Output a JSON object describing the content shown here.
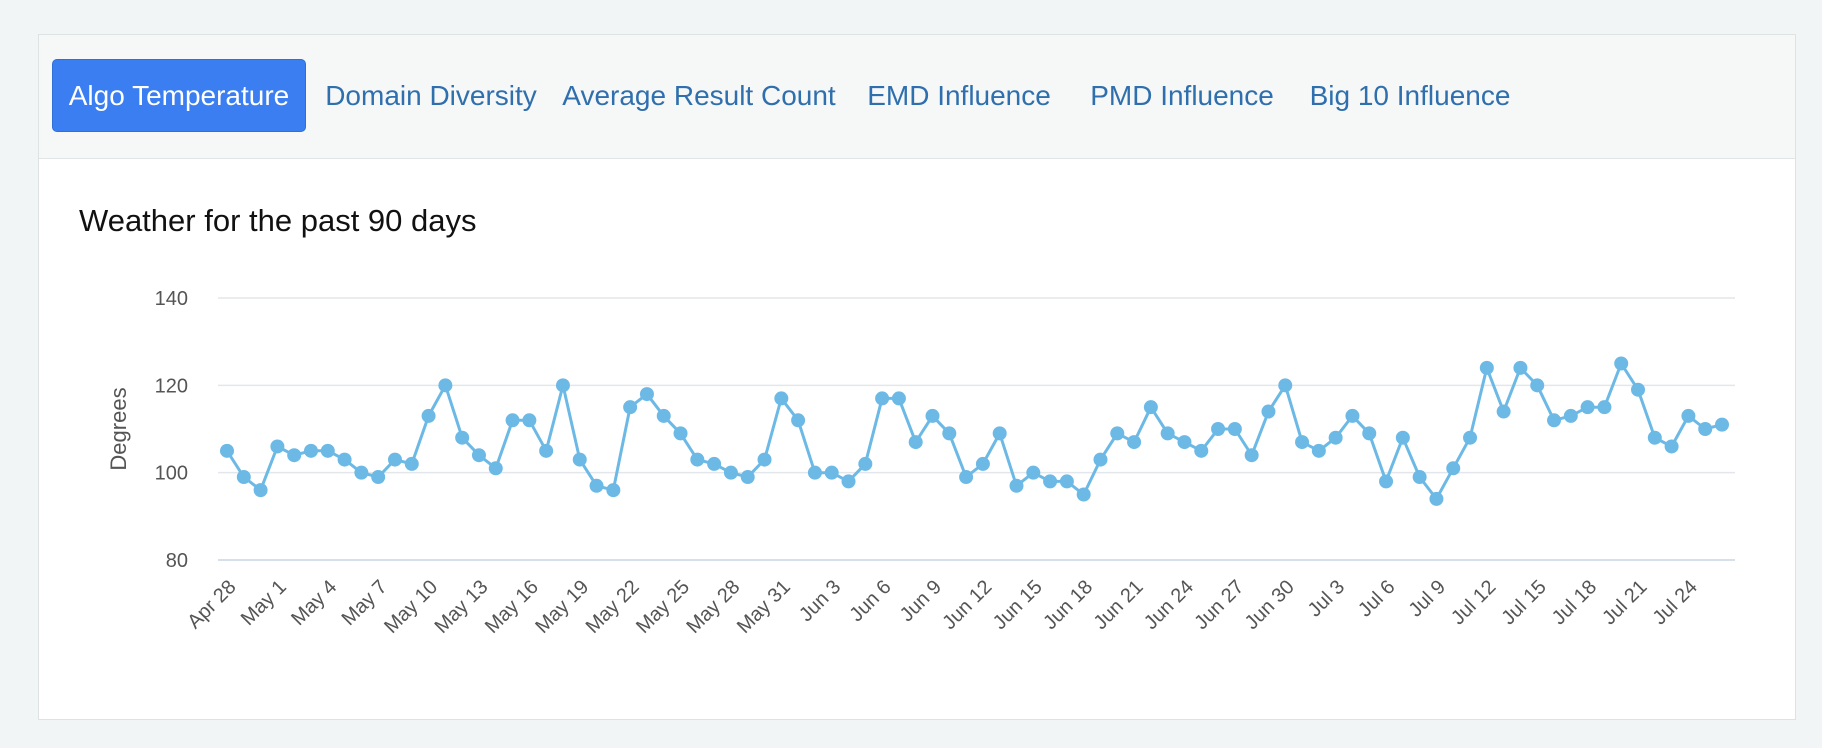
{
  "tabs": [
    {
      "label": "Algo Temperature",
      "active": true
    },
    {
      "label": "Domain Diversity",
      "active": false
    },
    {
      "label": "Average Result Count",
      "active": false
    },
    {
      "label": "EMD Influence",
      "active": false
    },
    {
      "label": "PMD Influence",
      "active": false
    },
    {
      "label": "Big 10 Influence",
      "active": false
    }
  ],
  "colors": {
    "accent": "#3a7ef2",
    "series": "#6cb9e6",
    "tab_text": "#2f6fad"
  },
  "chart_data": {
    "type": "line",
    "title": "Weather for the past 90 days",
    "ylabel": "Degrees",
    "xlabel": "",
    "ylim": [
      80,
      140
    ],
    "yticks": [
      80,
      100,
      120,
      140
    ],
    "grid": true,
    "legend": "none",
    "x_tick_labels": [
      "Apr 28",
      "May 1",
      "May 4",
      "May 7",
      "May 10",
      "May 13",
      "May 16",
      "May 19",
      "May 22",
      "May 25",
      "May 28",
      "May 31",
      "Jun 3",
      "Jun 6",
      "Jun 9",
      "Jun 12",
      "Jun 15",
      "Jun 18",
      "Jun 21",
      "Jun 24",
      "Jun 27",
      "Jun 30",
      "Jul 3",
      "Jul 6",
      "Jul 9",
      "Jul 12",
      "Jul 15",
      "Jul 18",
      "Jul 21",
      "Jul 24"
    ],
    "series": [
      {
        "values": [
          105,
          99,
          96,
          106,
          104,
          105,
          105,
          103,
          100,
          99,
          103,
          102,
          113,
          120,
          108,
          104,
          101,
          112,
          112,
          105,
          120,
          103,
          97,
          96,
          115,
          118,
          113,
          109,
          103,
          102,
          100,
          99,
          103,
          117,
          112,
          100,
          100,
          98,
          102,
          117,
          117,
          107,
          113,
          109,
          99,
          102,
          109,
          97,
          100,
          98,
          98,
          95,
          103,
          109,
          107,
          115,
          109,
          107,
          105,
          110,
          110,
          104,
          114,
          120,
          107,
          105,
          108,
          113,
          109,
          98,
          108,
          99,
          94,
          101,
          108,
          124,
          114,
          124,
          120,
          112,
          113,
          115,
          115,
          125,
          119,
          108,
          106,
          113,
          110,
          111
        ]
      }
    ]
  }
}
